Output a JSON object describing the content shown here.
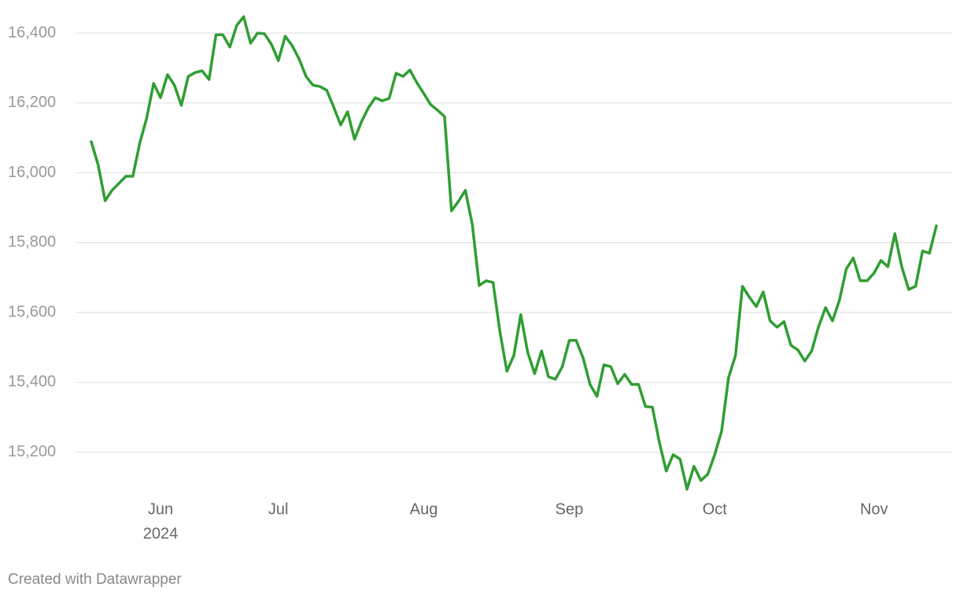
{
  "chart_data": {
    "type": "line",
    "categories": [
      null,
      null,
      null,
      null,
      null,
      null,
      null,
      null,
      null,
      null,
      "Jun",
      null,
      null,
      null,
      null,
      null,
      null,
      null,
      null,
      null,
      null,
      null,
      null,
      null,
      null,
      null,
      null,
      "Jul",
      null,
      null,
      null,
      null,
      null,
      null,
      null,
      null,
      null,
      null,
      null,
      null,
      null,
      null,
      null,
      null,
      null,
      null,
      null,
      null,
      "Aug",
      null,
      null,
      null,
      null,
      null,
      null,
      null,
      null,
      null,
      null,
      null,
      null,
      null,
      null,
      null,
      null,
      null,
      null,
      null,
      null,
      "Sep",
      null,
      null,
      null,
      null,
      null,
      null,
      null,
      null,
      null,
      null,
      null,
      null,
      null,
      null,
      null,
      null,
      null,
      null,
      null,
      null,
      "Oct",
      null,
      null,
      null,
      null,
      null,
      null,
      null,
      null,
      null,
      null,
      null,
      null,
      null,
      null,
      null,
      null,
      null,
      null,
      null,
      null,
      null,
      null,
      "Nov",
      null,
      null,
      null,
      null,
      null,
      null,
      null,
      null,
      null
    ],
    "year": "2024",
    "series": [
      {
        "color": "#2f9e32",
        "values": [
          16089,
          16022,
          15920,
          15950,
          15970,
          15990,
          15990,
          16085,
          16157,
          16256,
          16215,
          16281,
          16251,
          16193,
          16276,
          16287,
          16292,
          16267,
          16395,
          16395,
          16360,
          16422,
          16447,
          16371,
          16400,
          16398,
          16368,
          16321,
          16391,
          16364,
          16326,
          16276,
          16251,
          16247,
          16236,
          16188,
          16137,
          16175,
          16096,
          16146,
          16186,
          16215,
          16206,
          16213,
          16285,
          16276,
          16294,
          16258,
          16227,
          16195,
          16179,
          16161,
          15891,
          15918,
          15950,
          15853,
          15677,
          15691,
          15686,
          15544,
          15432,
          15477,
          15594,
          15486,
          15425,
          15490,
          15416,
          15409,
          15445,
          15520,
          15520,
          15470,
          15394,
          15360,
          15450,
          15445,
          15396,
          15423,
          15394,
          15394,
          15331,
          15329,
          15229,
          15146,
          15193,
          15180,
          15094,
          15160,
          15119,
          15137,
          15193,
          15261,
          15414,
          15477,
          15675,
          15644,
          15617,
          15659,
          15576,
          15558,
          15574,
          15506,
          15493,
          15461,
          15490,
          15560,
          15614,
          15576,
          15635,
          15725,
          15756,
          15691,
          15691,
          15713,
          15749,
          15731,
          15826,
          15731,
          15666,
          15675,
          15776,
          15770,
          15848
        ]
      }
    ],
    "ylim": [
      15080,
      16460
    ],
    "yticks": [
      {
        "value": 15200,
        "label": "15,200"
      },
      {
        "value": 15400,
        "label": "15,400"
      },
      {
        "value": 15600,
        "label": "15,600"
      },
      {
        "value": 15800,
        "label": "15,800"
      },
      {
        "value": 16000,
        "label": "16,000"
      },
      {
        "value": 16200,
        "label": "16,200"
      },
      {
        "value": 16400,
        "label": "16,400"
      }
    ],
    "grid": true,
    "source": "Created with Datawrapper"
  }
}
